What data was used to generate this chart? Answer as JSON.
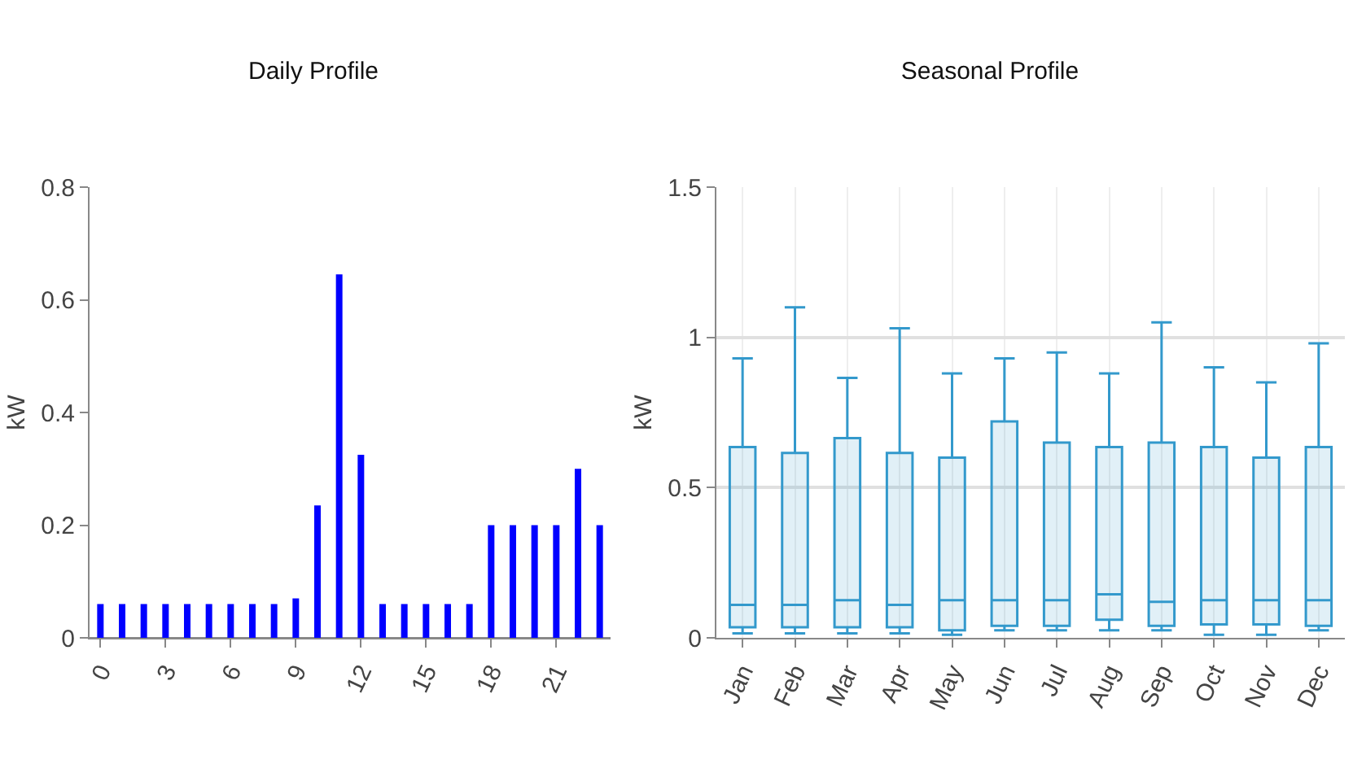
{
  "chart_data": [
    {
      "type": "bar",
      "title": "Daily Profile",
      "ylabel": "kW",
      "x": [
        0,
        1,
        2,
        3,
        4,
        5,
        6,
        7,
        8,
        9,
        10,
        11,
        12,
        13,
        14,
        15,
        16,
        17,
        18,
        19,
        20,
        21,
        22,
        23
      ],
      "values": [
        0.06,
        0.06,
        0.06,
        0.06,
        0.06,
        0.06,
        0.06,
        0.06,
        0.06,
        0.07,
        0.235,
        0.645,
        0.325,
        0.06,
        0.06,
        0.06,
        0.06,
        0.06,
        0.2,
        0.2,
        0.2,
        0.2,
        0.3,
        0.2
      ],
      "color": "#0000ff",
      "xlim": [
        -0.5,
        23.5
      ],
      "xticks": [
        0,
        3,
        6,
        9,
        12,
        15,
        18,
        21
      ],
      "ylim": [
        0,
        0.8
      ],
      "yticks": [
        0,
        0.2,
        0.4,
        0.6,
        0.8
      ]
    },
    {
      "type": "box",
      "title": "Seasonal Profile",
      "ylabel": "kW",
      "categories": [
        "Jan",
        "Feb",
        "Mar",
        "Apr",
        "May",
        "Jun",
        "Jul",
        "Aug",
        "Sep",
        "Oct",
        "Nov",
        "Dec"
      ],
      "color": "#3399cc",
      "boxes": [
        {
          "low": 0.015,
          "q1": 0.035,
          "median": 0.11,
          "q3": 0.635,
          "high": 0.93
        },
        {
          "low": 0.015,
          "q1": 0.035,
          "median": 0.11,
          "q3": 0.615,
          "high": 1.1
        },
        {
          "low": 0.015,
          "q1": 0.035,
          "median": 0.125,
          "q3": 0.665,
          "high": 0.865
        },
        {
          "low": 0.015,
          "q1": 0.035,
          "median": 0.11,
          "q3": 0.615,
          "high": 1.03
        },
        {
          "low": 0.01,
          "q1": 0.025,
          "median": 0.125,
          "q3": 0.6,
          "high": 0.88
        },
        {
          "low": 0.025,
          "q1": 0.04,
          "median": 0.125,
          "q3": 0.72,
          "high": 0.93
        },
        {
          "low": 0.025,
          "q1": 0.04,
          "median": 0.125,
          "q3": 0.65,
          "high": 0.95
        },
        {
          "low": 0.025,
          "q1": 0.06,
          "median": 0.145,
          "q3": 0.635,
          "high": 0.88
        },
        {
          "low": 0.025,
          "q1": 0.04,
          "median": 0.12,
          "q3": 0.65,
          "high": 1.05
        },
        {
          "low": 0.01,
          "q1": 0.045,
          "median": 0.125,
          "q3": 0.635,
          "high": 0.9
        },
        {
          "low": 0.01,
          "q1": 0.045,
          "median": 0.125,
          "q3": 0.6,
          "high": 0.85
        },
        {
          "low": 0.025,
          "q1": 0.04,
          "median": 0.125,
          "q3": 0.635,
          "high": 0.98
        }
      ],
      "ylim": [
        0,
        1.5
      ],
      "yticks": [
        0,
        0.5,
        1,
        1.5
      ],
      "grid": true
    }
  ]
}
